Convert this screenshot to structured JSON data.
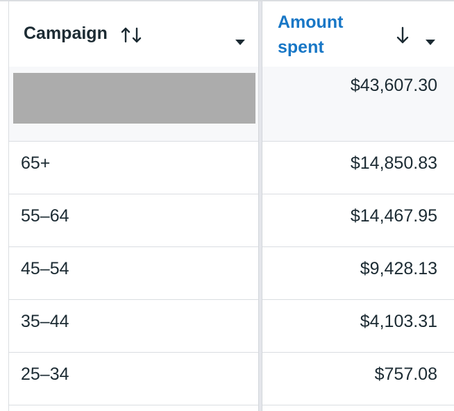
{
  "table": {
    "columns": {
      "campaign": {
        "label": "Campaign"
      },
      "amount_spent": {
        "label": "Amount spent"
      }
    },
    "rows": [
      {
        "campaign": "",
        "campaign_redacted": true,
        "amount_spent": "$43,607.30"
      },
      {
        "campaign": "65+",
        "amount_spent": "$14,850.83"
      },
      {
        "campaign": "55–64",
        "amount_spent": "$14,467.95"
      },
      {
        "campaign": "45–54",
        "amount_spent": "$9,428.13"
      },
      {
        "campaign": "35–44",
        "amount_spent": "$4,103.31"
      },
      {
        "campaign": "25–34",
        "amount_spent": "$757.08"
      }
    ]
  },
  "colors": {
    "accent": "#1877c6",
    "text": "#1c2b33",
    "border": "#dadde1",
    "redaction": "#acacac"
  },
  "icons": {
    "campaign_sort": "sort-updown-icon",
    "amount_sort": "sort-down-arrow-icon",
    "dropdown": "caret-down-icon"
  }
}
